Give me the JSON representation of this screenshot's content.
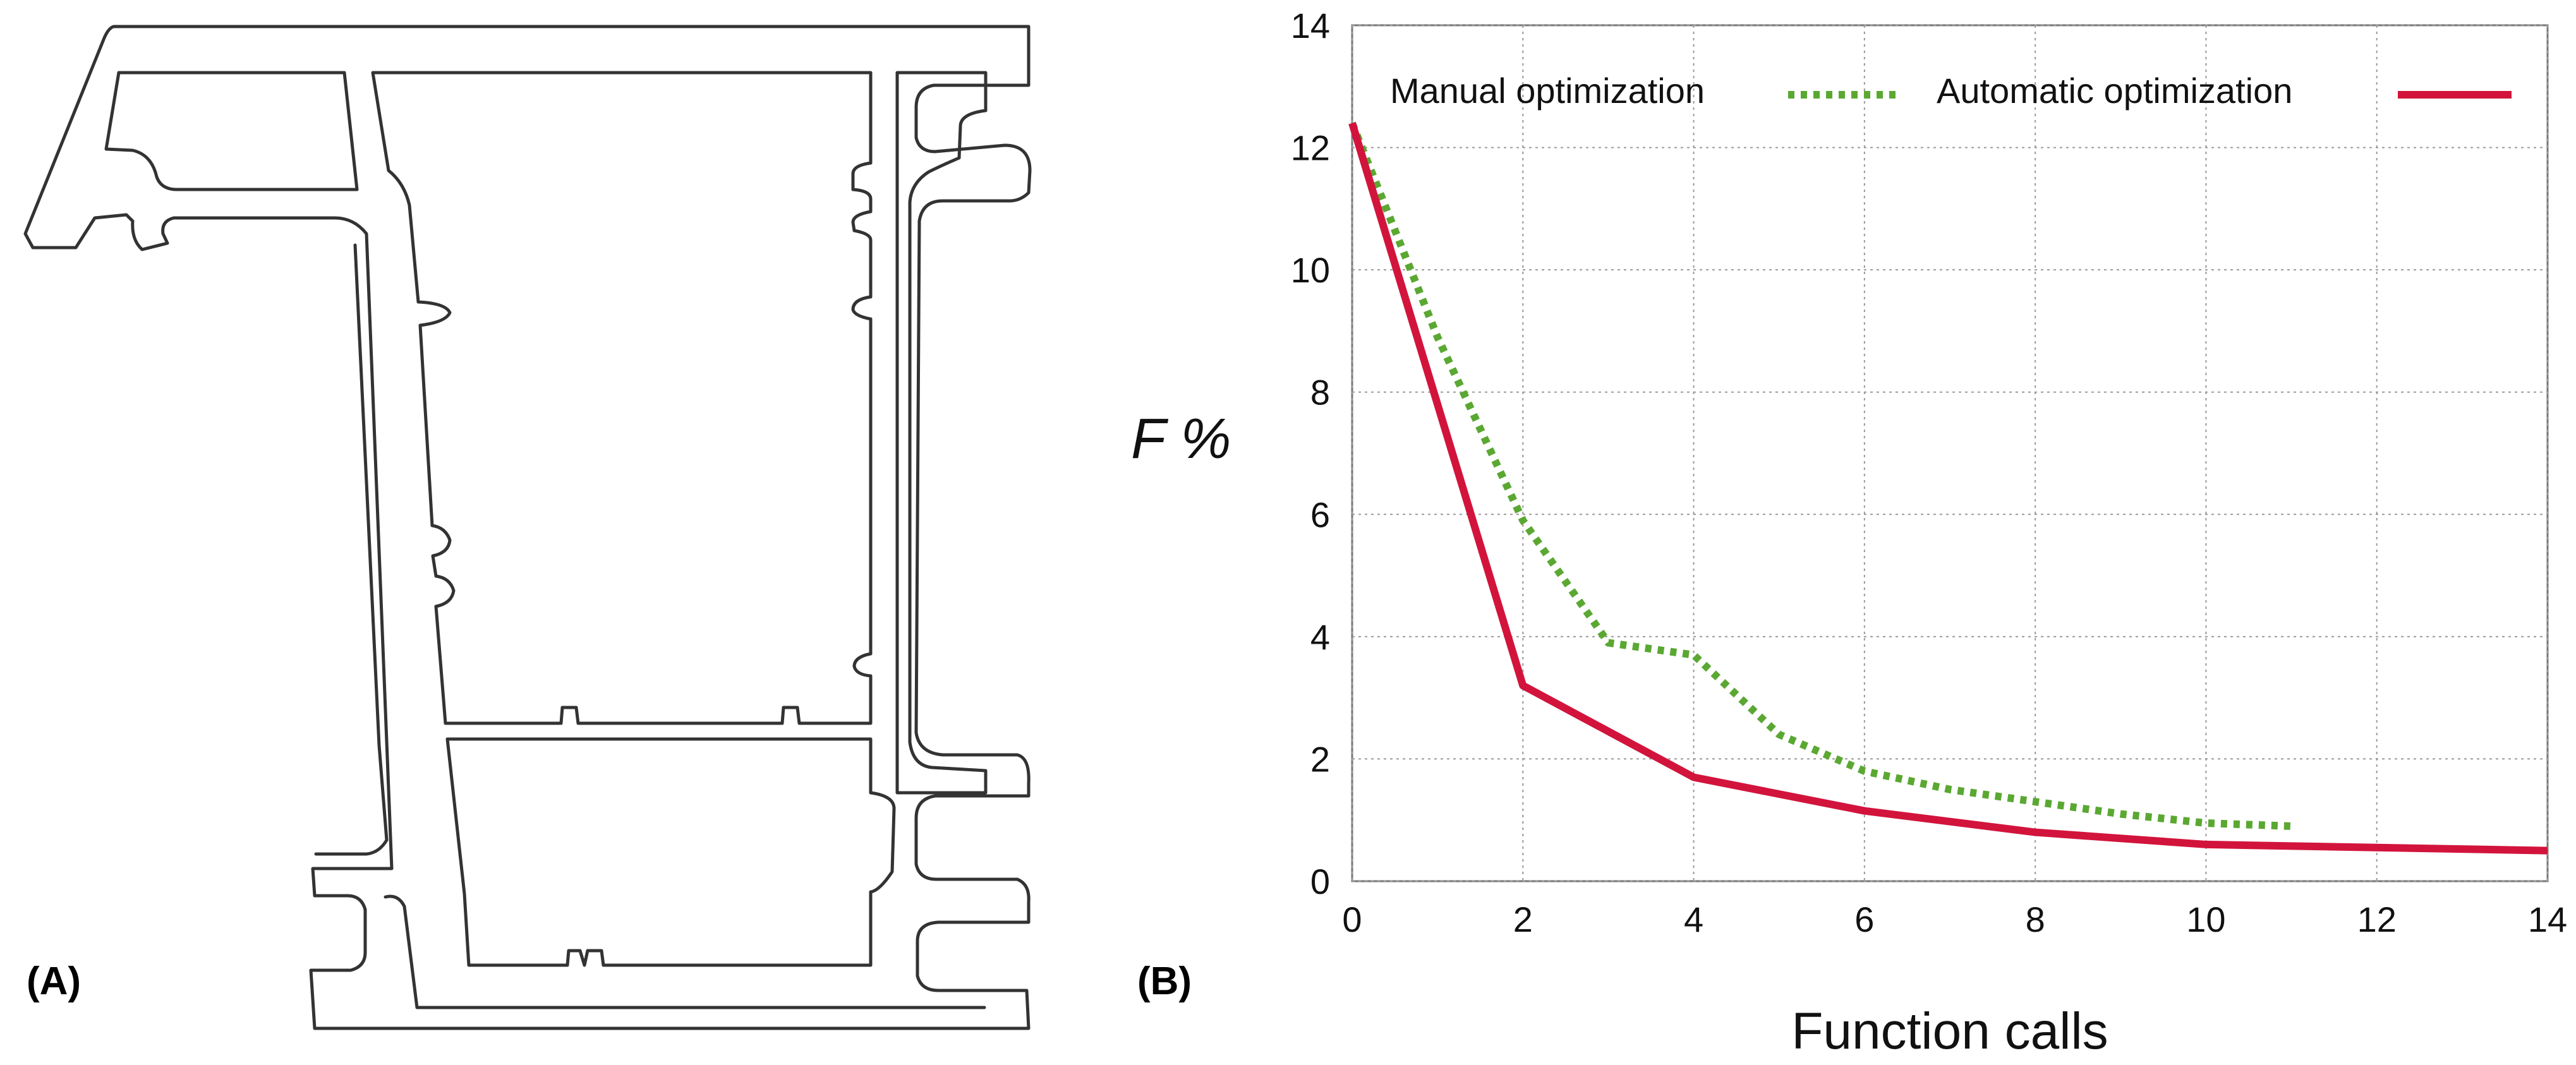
{
  "panels": {
    "a_label": "(A)",
    "b_label": "(B)"
  },
  "profile_drawing": {
    "description_icon": "aluminium-window-profile-cross-section",
    "stroke_color": "#333333"
  },
  "chart_data": {
    "type": "line",
    "title": "",
    "xlabel": "Function calls",
    "ylabel": "F %",
    "xlim": [
      0,
      14
    ],
    "ylim": [
      0,
      14
    ],
    "xticks": [
      0,
      2,
      4,
      6,
      8,
      10,
      12,
      14
    ],
    "yticks": [
      0,
      2,
      4,
      6,
      8,
      10,
      12,
      14
    ],
    "grid": true,
    "legend_position": "top",
    "series": [
      {
        "name": "Manual optimization",
        "style": "dotted",
        "color": "#5aa832",
        "x": [
          0,
          1,
          2,
          3,
          4,
          5,
          6,
          7,
          8,
          9,
          10,
          11
        ],
        "y": [
          12.4,
          8.9,
          5.9,
          3.9,
          3.7,
          2.4,
          1.8,
          1.5,
          1.3,
          1.1,
          0.95,
          0.9
        ]
      },
      {
        "name": "Automatic optimization",
        "style": "solid",
        "color": "#d2143c",
        "x": [
          0,
          2,
          4,
          6,
          8,
          10,
          12,
          14
        ],
        "y": [
          12.4,
          3.2,
          1.7,
          1.15,
          0.8,
          0.6,
          0.55,
          0.5
        ]
      }
    ]
  }
}
